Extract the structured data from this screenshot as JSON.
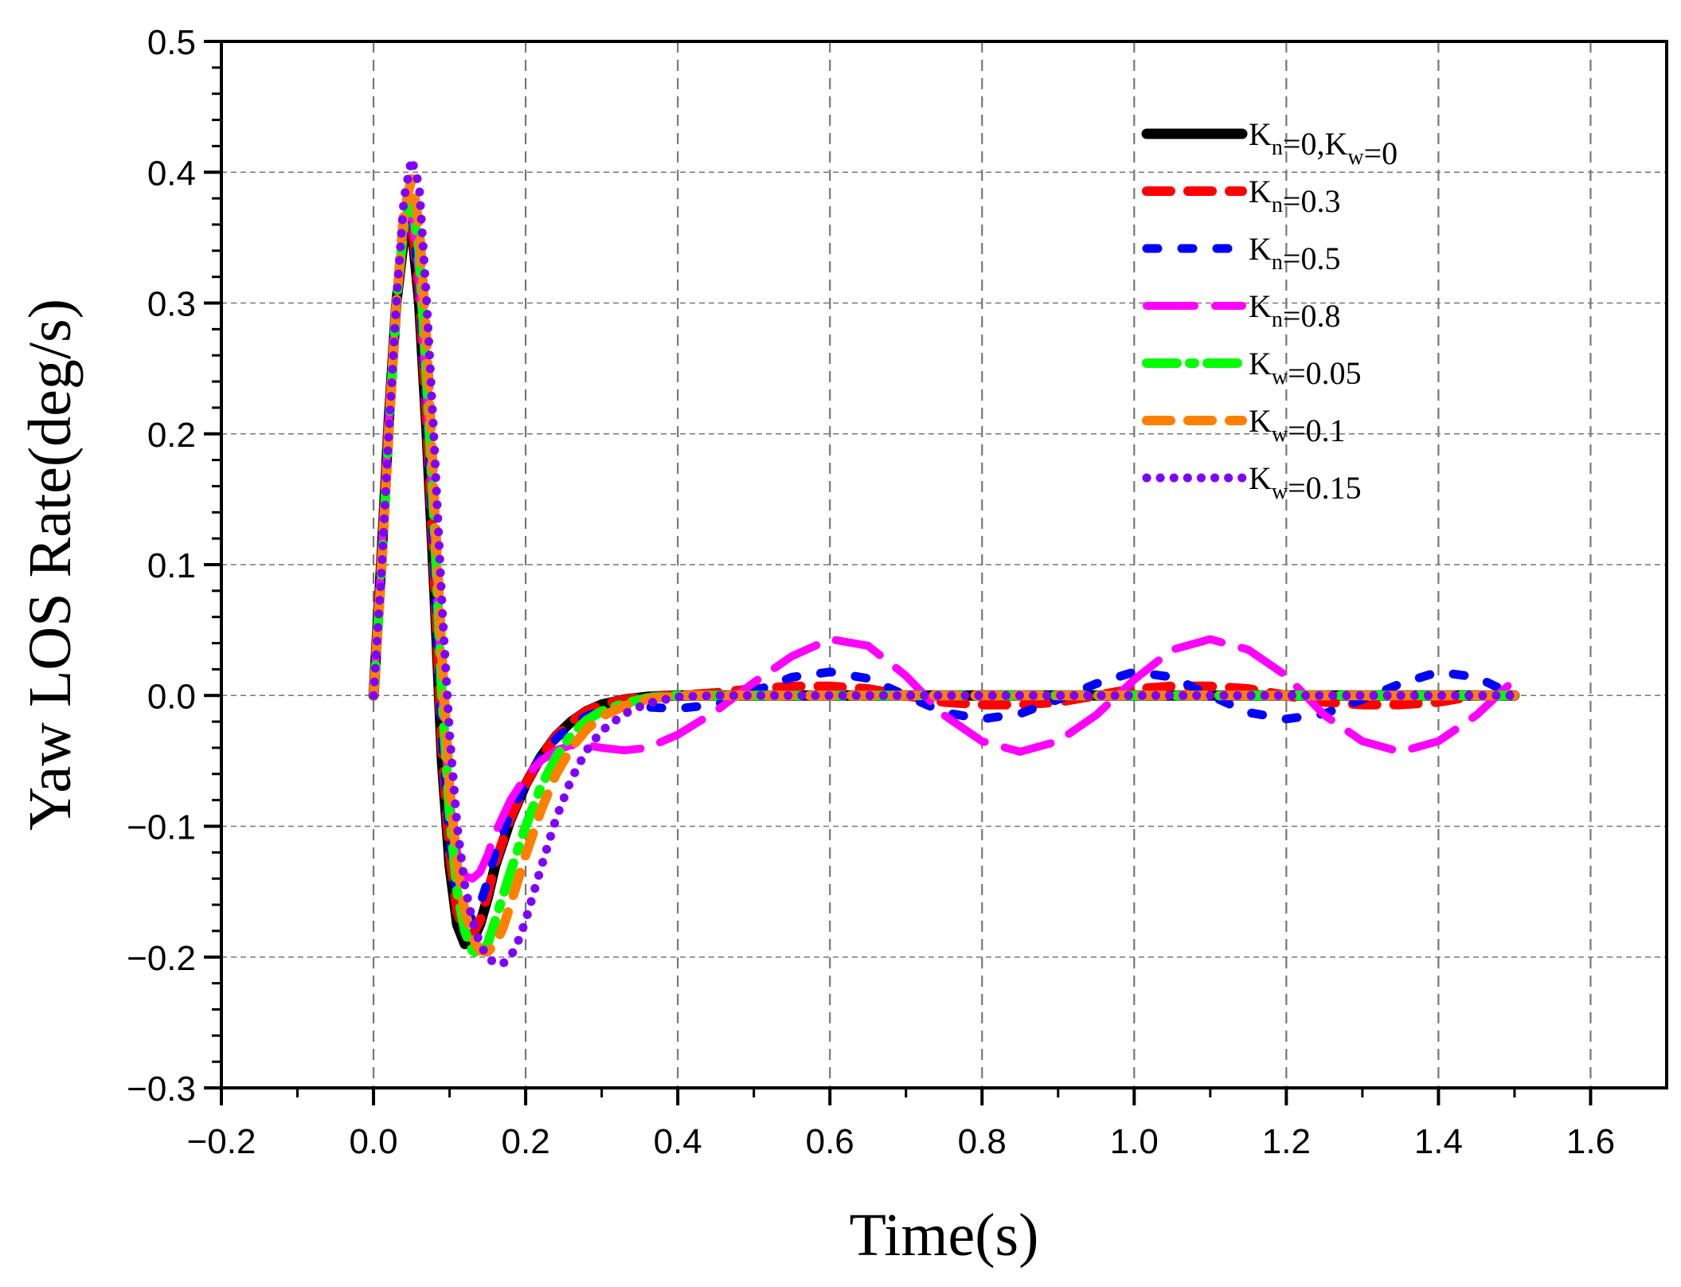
{
  "chart_data": {
    "type": "line",
    "title": "",
    "xlabel": "Time(s)",
    "ylabel": "Yaw LOS Rate(deg/s)",
    "xlim": [
      -0.2,
      1.7
    ],
    "ylim": [
      -0.3,
      0.5
    ],
    "xticks": [
      -0.2,
      0.0,
      0.2,
      0.4,
      0.6,
      0.8,
      1.0,
      1.2,
      1.4,
      1.6
    ],
    "xtick_labels": [
      "−0.2",
      "0.0",
      "0.2",
      "0.4",
      "0.6",
      "0.8",
      "1.0",
      "1.2",
      "1.4",
      "1.6"
    ],
    "yticks": [
      -0.3,
      -0.2,
      -0.1,
      0.0,
      0.1,
      0.2,
      0.3,
      0.4,
      0.5
    ],
    "ytick_labels": [
      "−0.3",
      "−0.2",
      "−0.1",
      "0.0",
      "0.1",
      "0.2",
      "0.3",
      "0.4",
      "0.5"
    ],
    "grid": true,
    "legend_position": "top-right",
    "series": [
      {
        "name": "Kn=0,Kw=0",
        "legend_parts": [
          {
            "t": "K",
            "s": "n"
          },
          {
            "t": "=0,K",
            "s": "w"
          },
          {
            "t": "=0",
            "s": ""
          }
        ],
        "color": "#000000",
        "style": "solid",
        "x": [
          0,
          0.01,
          0.02,
          0.03,
          0.04,
          0.05,
          0.06,
          0.07,
          0.08,
          0.09,
          0.1,
          0.11,
          0.12,
          0.13,
          0.14,
          0.15,
          0.16,
          0.18,
          0.2,
          0.22,
          0.24,
          0.26,
          0.28,
          0.3,
          0.33,
          0.36,
          0.4,
          0.45,
          0.5,
          0.6,
          0.7,
          0.8,
          0.9,
          1.0,
          1.1,
          1.2,
          1.3,
          1.4,
          1.5
        ],
        "y": [
          0,
          0.1,
          0.21,
          0.3,
          0.35,
          0.36,
          0.3,
          0.2,
          0.08,
          -0.05,
          -0.13,
          -0.175,
          -0.19,
          -0.188,
          -0.175,
          -0.155,
          -0.13,
          -0.095,
          -0.068,
          -0.047,
          -0.031,
          -0.02,
          -0.012,
          -0.007,
          -0.003,
          -0.001,
          0,
          0,
          0,
          0,
          0,
          0,
          0,
          0,
          0,
          0,
          0,
          0,
          0
        ]
      },
      {
        "name": "Kn=0.3",
        "legend_parts": [
          {
            "t": "K",
            "s": "n"
          },
          {
            "t": "=0.3",
            "s": ""
          }
        ],
        "color": "#ff0000",
        "style": "dashed",
        "x": [
          0,
          0.01,
          0.02,
          0.03,
          0.04,
          0.05,
          0.06,
          0.07,
          0.08,
          0.09,
          0.1,
          0.11,
          0.12,
          0.13,
          0.14,
          0.15,
          0.16,
          0.18,
          0.2,
          0.22,
          0.24,
          0.26,
          0.28,
          0.3,
          0.33,
          0.36,
          0.4,
          0.45,
          0.5,
          0.55,
          0.6,
          0.65,
          0.7,
          0.75,
          0.8,
          0.85,
          0.9,
          0.95,
          1.0,
          1.05,
          1.1,
          1.15,
          1.2,
          1.25,
          1.3,
          1.35,
          1.4,
          1.45,
          1.5
        ],
        "y": [
          0,
          0.1,
          0.21,
          0.3,
          0.355,
          0.365,
          0.31,
          0.21,
          0.09,
          -0.04,
          -0.12,
          -0.165,
          -0.182,
          -0.183,
          -0.172,
          -0.152,
          -0.128,
          -0.094,
          -0.068,
          -0.047,
          -0.031,
          -0.02,
          -0.012,
          -0.007,
          -0.003,
          -0.001,
          0.0,
          0.002,
          0.005,
          0.007,
          0.007,
          0.005,
          0.0,
          -0.005,
          -0.007,
          -0.007,
          -0.005,
          0.0,
          0.005,
          0.007,
          0.007,
          0.005,
          0.0,
          -0.005,
          -0.007,
          -0.007,
          -0.005,
          0.0,
          0.0
        ]
      },
      {
        "name": "Kn=0.5",
        "legend_parts": [
          {
            "t": "K",
            "s": "n"
          },
          {
            "t": "=0.5",
            "s": ""
          }
        ],
        "color": "#0000ff",
        "style": "dashed-short",
        "x": [
          0,
          0.01,
          0.02,
          0.03,
          0.04,
          0.05,
          0.06,
          0.07,
          0.08,
          0.09,
          0.1,
          0.11,
          0.12,
          0.13,
          0.14,
          0.15,
          0.16,
          0.18,
          0.2,
          0.22,
          0.24,
          0.26,
          0.28,
          0.3,
          0.33,
          0.36,
          0.4,
          0.45,
          0.5,
          0.55,
          0.6,
          0.65,
          0.7,
          0.75,
          0.8,
          0.85,
          0.9,
          0.95,
          1.0,
          1.05,
          1.1,
          1.15,
          1.2,
          1.25,
          1.3,
          1.35,
          1.4,
          1.45,
          1.5
        ],
        "y": [
          0,
          0.1,
          0.21,
          0.3,
          0.355,
          0.37,
          0.315,
          0.22,
          0.1,
          -0.03,
          -0.11,
          -0.155,
          -0.17,
          -0.17,
          -0.16,
          -0.142,
          -0.12,
          -0.09,
          -0.067,
          -0.047,
          -0.033,
          -0.023,
          -0.016,
          -0.011,
          -0.009,
          -0.009,
          -0.01,
          -0.007,
          0.003,
          0.014,
          0.018,
          0.013,
          0.0,
          -0.013,
          -0.018,
          -0.014,
          -0.003,
          0.009,
          0.018,
          0.014,
          0.0,
          -0.013,
          -0.018,
          -0.014,
          -0.003,
          0.009,
          0.018,
          0.014,
          0.0
        ]
      },
      {
        "name": "Kn=0.8",
        "legend_parts": [
          {
            "t": "K",
            "s": "n"
          },
          {
            "t": "=0.8",
            "s": ""
          }
        ],
        "color": "#ff00ff",
        "style": "longdash",
        "x": [
          0,
          0.01,
          0.02,
          0.03,
          0.04,
          0.05,
          0.06,
          0.07,
          0.08,
          0.09,
          0.1,
          0.11,
          0.12,
          0.13,
          0.14,
          0.15,
          0.16,
          0.18,
          0.2,
          0.22,
          0.24,
          0.26,
          0.28,
          0.3,
          0.33,
          0.36,
          0.4,
          0.45,
          0.5,
          0.55,
          0.6,
          0.65,
          0.7,
          0.75,
          0.8,
          0.85,
          0.9,
          0.95,
          1.0,
          1.05,
          1.1,
          1.15,
          1.2,
          1.25,
          1.3,
          1.35,
          1.4,
          1.45,
          1.5
        ],
        "y": [
          0,
          0.1,
          0.21,
          0.3,
          0.36,
          0.375,
          0.32,
          0.23,
          0.12,
          0.0,
          -0.08,
          -0.12,
          -0.138,
          -0.14,
          -0.135,
          -0.122,
          -0.105,
          -0.08,
          -0.062,
          -0.05,
          -0.042,
          -0.038,
          -0.038,
          -0.04,
          -0.042,
          -0.04,
          -0.03,
          -0.012,
          0.01,
          0.03,
          0.043,
          0.038,
          0.015,
          -0.015,
          -0.035,
          -0.043,
          -0.035,
          -0.015,
          0.012,
          0.035,
          0.043,
          0.035,
          0.015,
          -0.015,
          -0.035,
          -0.043,
          -0.035,
          -0.015,
          0.012
        ]
      },
      {
        "name": "Kw=0.05",
        "legend_parts": [
          {
            "t": "K",
            "s": "w"
          },
          {
            "t": "=0.05",
            "s": ""
          }
        ],
        "color": "#00ff00",
        "style": "dashdot",
        "x": [
          0,
          0.01,
          0.02,
          0.03,
          0.04,
          0.05,
          0.06,
          0.07,
          0.08,
          0.09,
          0.1,
          0.11,
          0.12,
          0.13,
          0.14,
          0.15,
          0.16,
          0.18,
          0.2,
          0.22,
          0.24,
          0.26,
          0.28,
          0.3,
          0.33,
          0.36,
          0.4,
          0.45,
          0.5,
          0.6,
          0.7,
          0.8,
          0.9,
          1.0,
          1.1,
          1.2,
          1.3,
          1.4,
          1.5
        ],
        "y": [
          0,
          0.09,
          0.2,
          0.3,
          0.36,
          0.38,
          0.34,
          0.24,
          0.13,
          0.0,
          -0.09,
          -0.15,
          -0.18,
          -0.195,
          -0.198,
          -0.19,
          -0.172,
          -0.135,
          -0.1,
          -0.07,
          -0.047,
          -0.03,
          -0.019,
          -0.012,
          -0.006,
          -0.002,
          0,
          0,
          0,
          0,
          0,
          0,
          0,
          0,
          0,
          0,
          0,
          0,
          0
        ]
      },
      {
        "name": "Kw=0.1",
        "legend_parts": [
          {
            "t": "K",
            "s": "w"
          },
          {
            "t": "=0.1",
            "s": ""
          }
        ],
        "color": "#ff8000",
        "style": "dashed",
        "x": [
          0,
          0.01,
          0.02,
          0.03,
          0.04,
          0.05,
          0.06,
          0.07,
          0.08,
          0.09,
          0.1,
          0.11,
          0.12,
          0.13,
          0.14,
          0.15,
          0.16,
          0.17,
          0.18,
          0.2,
          0.22,
          0.24,
          0.26,
          0.28,
          0.3,
          0.33,
          0.36,
          0.4,
          0.45,
          0.5,
          0.6,
          0.7,
          0.8,
          0.9,
          1.0,
          1.1,
          1.2,
          1.3,
          1.4,
          1.5
        ],
        "y": [
          0,
          0.09,
          0.2,
          0.3,
          0.37,
          0.395,
          0.36,
          0.27,
          0.15,
          0.03,
          -0.07,
          -0.13,
          -0.165,
          -0.185,
          -0.195,
          -0.196,
          -0.19,
          -0.178,
          -0.16,
          -0.122,
          -0.088,
          -0.06,
          -0.04,
          -0.026,
          -0.016,
          -0.008,
          -0.003,
          0,
          0,
          0,
          0,
          0,
          0,
          0,
          0,
          0,
          0,
          0,
          0,
          0
        ]
      },
      {
        "name": "Kw=0.15",
        "legend_parts": [
          {
            "t": "K",
            "s": "w"
          },
          {
            "t": "=0.15",
            "s": ""
          }
        ],
        "color": "#8000ff",
        "style": "dotted",
        "x": [
          0,
          0.01,
          0.02,
          0.03,
          0.04,
          0.05,
          0.06,
          0.07,
          0.08,
          0.09,
          0.1,
          0.11,
          0.12,
          0.13,
          0.14,
          0.15,
          0.16,
          0.17,
          0.18,
          0.19,
          0.2,
          0.22,
          0.24,
          0.26,
          0.28,
          0.3,
          0.33,
          0.36,
          0.4,
          0.45,
          0.5,
          0.6,
          0.7,
          0.8,
          0.9,
          1.0,
          1.1,
          1.2,
          1.3,
          1.4,
          1.5
        ],
        "y": [
          0,
          0.09,
          0.2,
          0.3,
          0.38,
          0.41,
          0.39,
          0.3,
          0.19,
          0.07,
          -0.03,
          -0.1,
          -0.145,
          -0.172,
          -0.19,
          -0.2,
          -0.205,
          -0.205,
          -0.2,
          -0.188,
          -0.172,
          -0.132,
          -0.094,
          -0.064,
          -0.042,
          -0.027,
          -0.014,
          -0.006,
          -0.001,
          0,
          0,
          0,
          0,
          0,
          0,
          0,
          0,
          0,
          0,
          0,
          0
        ]
      }
    ]
  }
}
